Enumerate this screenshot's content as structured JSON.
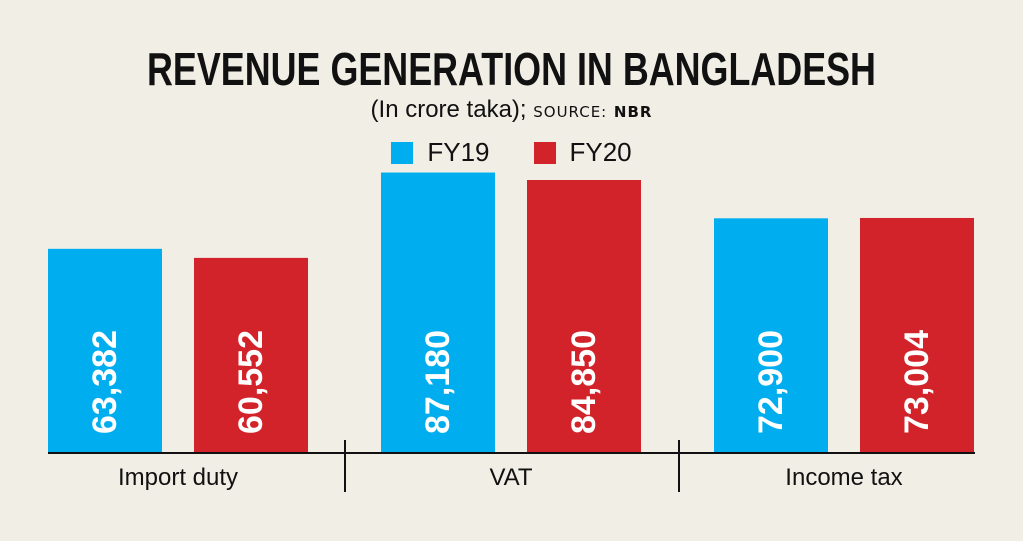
{
  "chart_data": {
    "type": "bar",
    "title": "REVENUE GENERATION IN BANGLADESH",
    "subtitle": "(In crore taka);",
    "source_label": "SOURCE:",
    "source": "NBR",
    "categories": [
      "Import duty",
      "VAT",
      "Income tax"
    ],
    "series": [
      {
        "name": "FY19",
        "color": "#00aeef",
        "values": [
          63382,
          87180,
          72900
        ],
        "labels": [
          "63,382",
          "87,180",
          "72,900"
        ]
      },
      {
        "name": "FY20",
        "color": "#d2232a",
        "values": [
          60552,
          84850,
          73004
        ],
        "labels": [
          "60,552",
          "84,850",
          "73,004"
        ]
      }
    ],
    "ylim": [
      0,
      141000
    ],
    "grid": false,
    "legend_position": "top-center"
  }
}
